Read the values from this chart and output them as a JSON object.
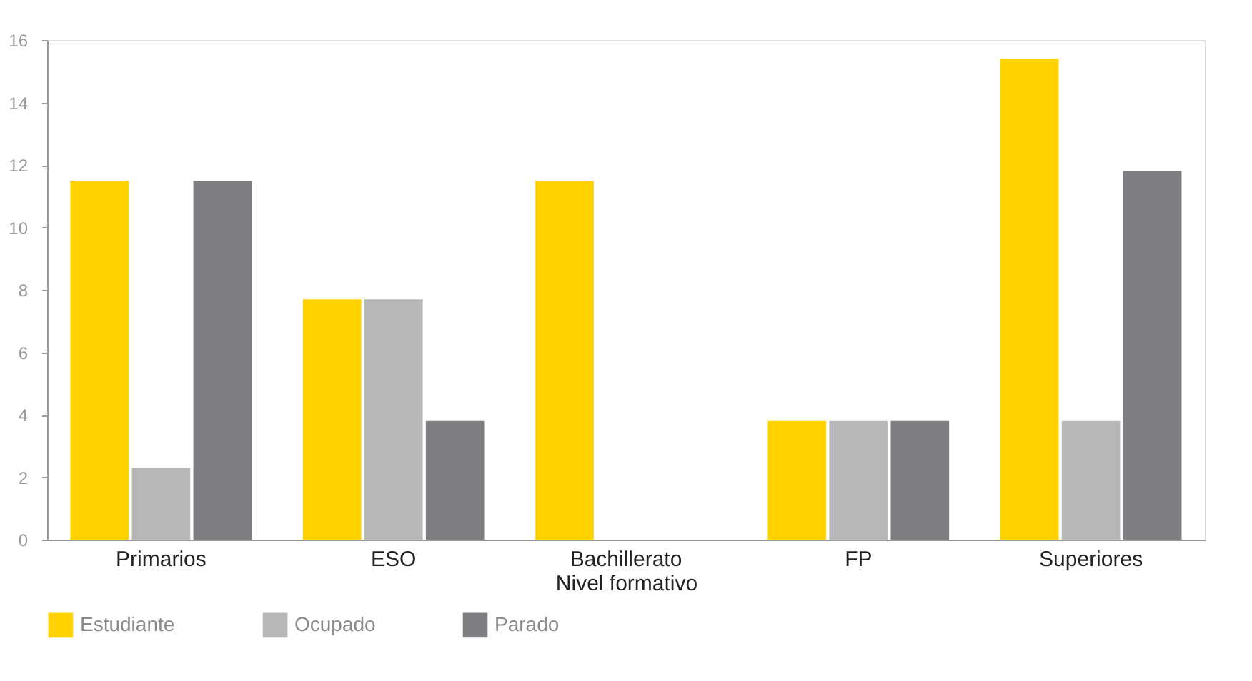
{
  "chart_data": {
    "type": "bar",
    "xlabel": "Nivel formativo",
    "categories": [
      "Primarios",
      "ESO",
      "Bachillerato",
      "FP",
      "Superiores"
    ],
    "series": [
      {
        "name": "Estudiante",
        "color": "#ffd200",
        "values": [
          11.5,
          7.7,
          11.5,
          3.8,
          15.4
        ]
      },
      {
        "name": "Ocupado",
        "color": "#b8b8ba",
        "values": [
          2.3,
          7.7,
          0,
          3.8,
          3.8
        ]
      },
      {
        "name": "Parado",
        "color": "#7f7f83",
        "values": [
          11.5,
          3.8,
          0,
          3.8,
          11.8
        ]
      }
    ],
    "ylim": [
      0,
      16
    ],
    "yticks": [
      0,
      2,
      4,
      6,
      8,
      10,
      12,
      14,
      16
    ],
    "grid": false,
    "legend": "bottom"
  }
}
